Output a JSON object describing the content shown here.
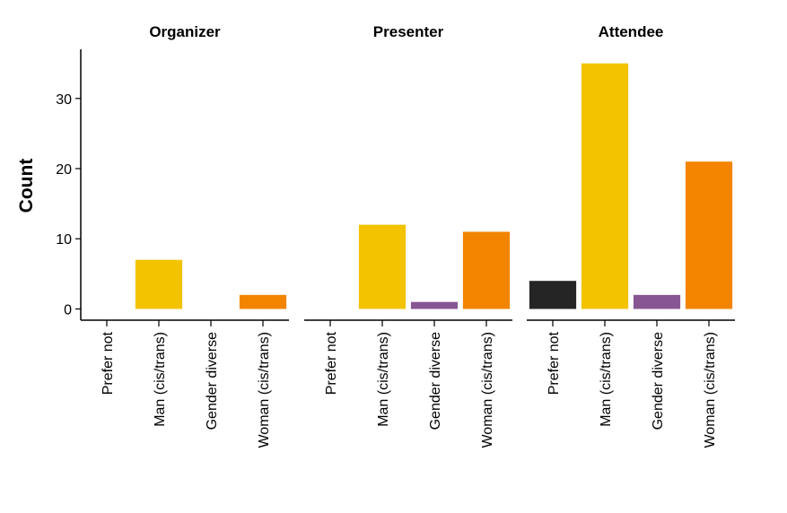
{
  "chart_data": {
    "type": "bar",
    "ylabel": "Count",
    "xlabel": "",
    "ylim": [
      -1.6,
      37
    ],
    "yticks": [
      0,
      10,
      20,
      30
    ],
    "categories": [
      "Prefer not",
      "Man (cis/trans)",
      "Gender diverse",
      "Woman (cis/trans)"
    ],
    "colors": {
      "Prefer not": "#252525",
      "Man (cis/trans)": "#F3C300",
      "Gender diverse": "#875692",
      "Woman (cis/trans)": "#F38400"
    },
    "facets": [
      {
        "title": "Organizer",
        "values": [
          0,
          7,
          0,
          2
        ]
      },
      {
        "title": "Presenter",
        "values": [
          0,
          12,
          1,
          11
        ]
      },
      {
        "title": "Attendee",
        "values": [
          4,
          35,
          2,
          21
        ]
      }
    ],
    "grid": false,
    "legend": "none"
  }
}
